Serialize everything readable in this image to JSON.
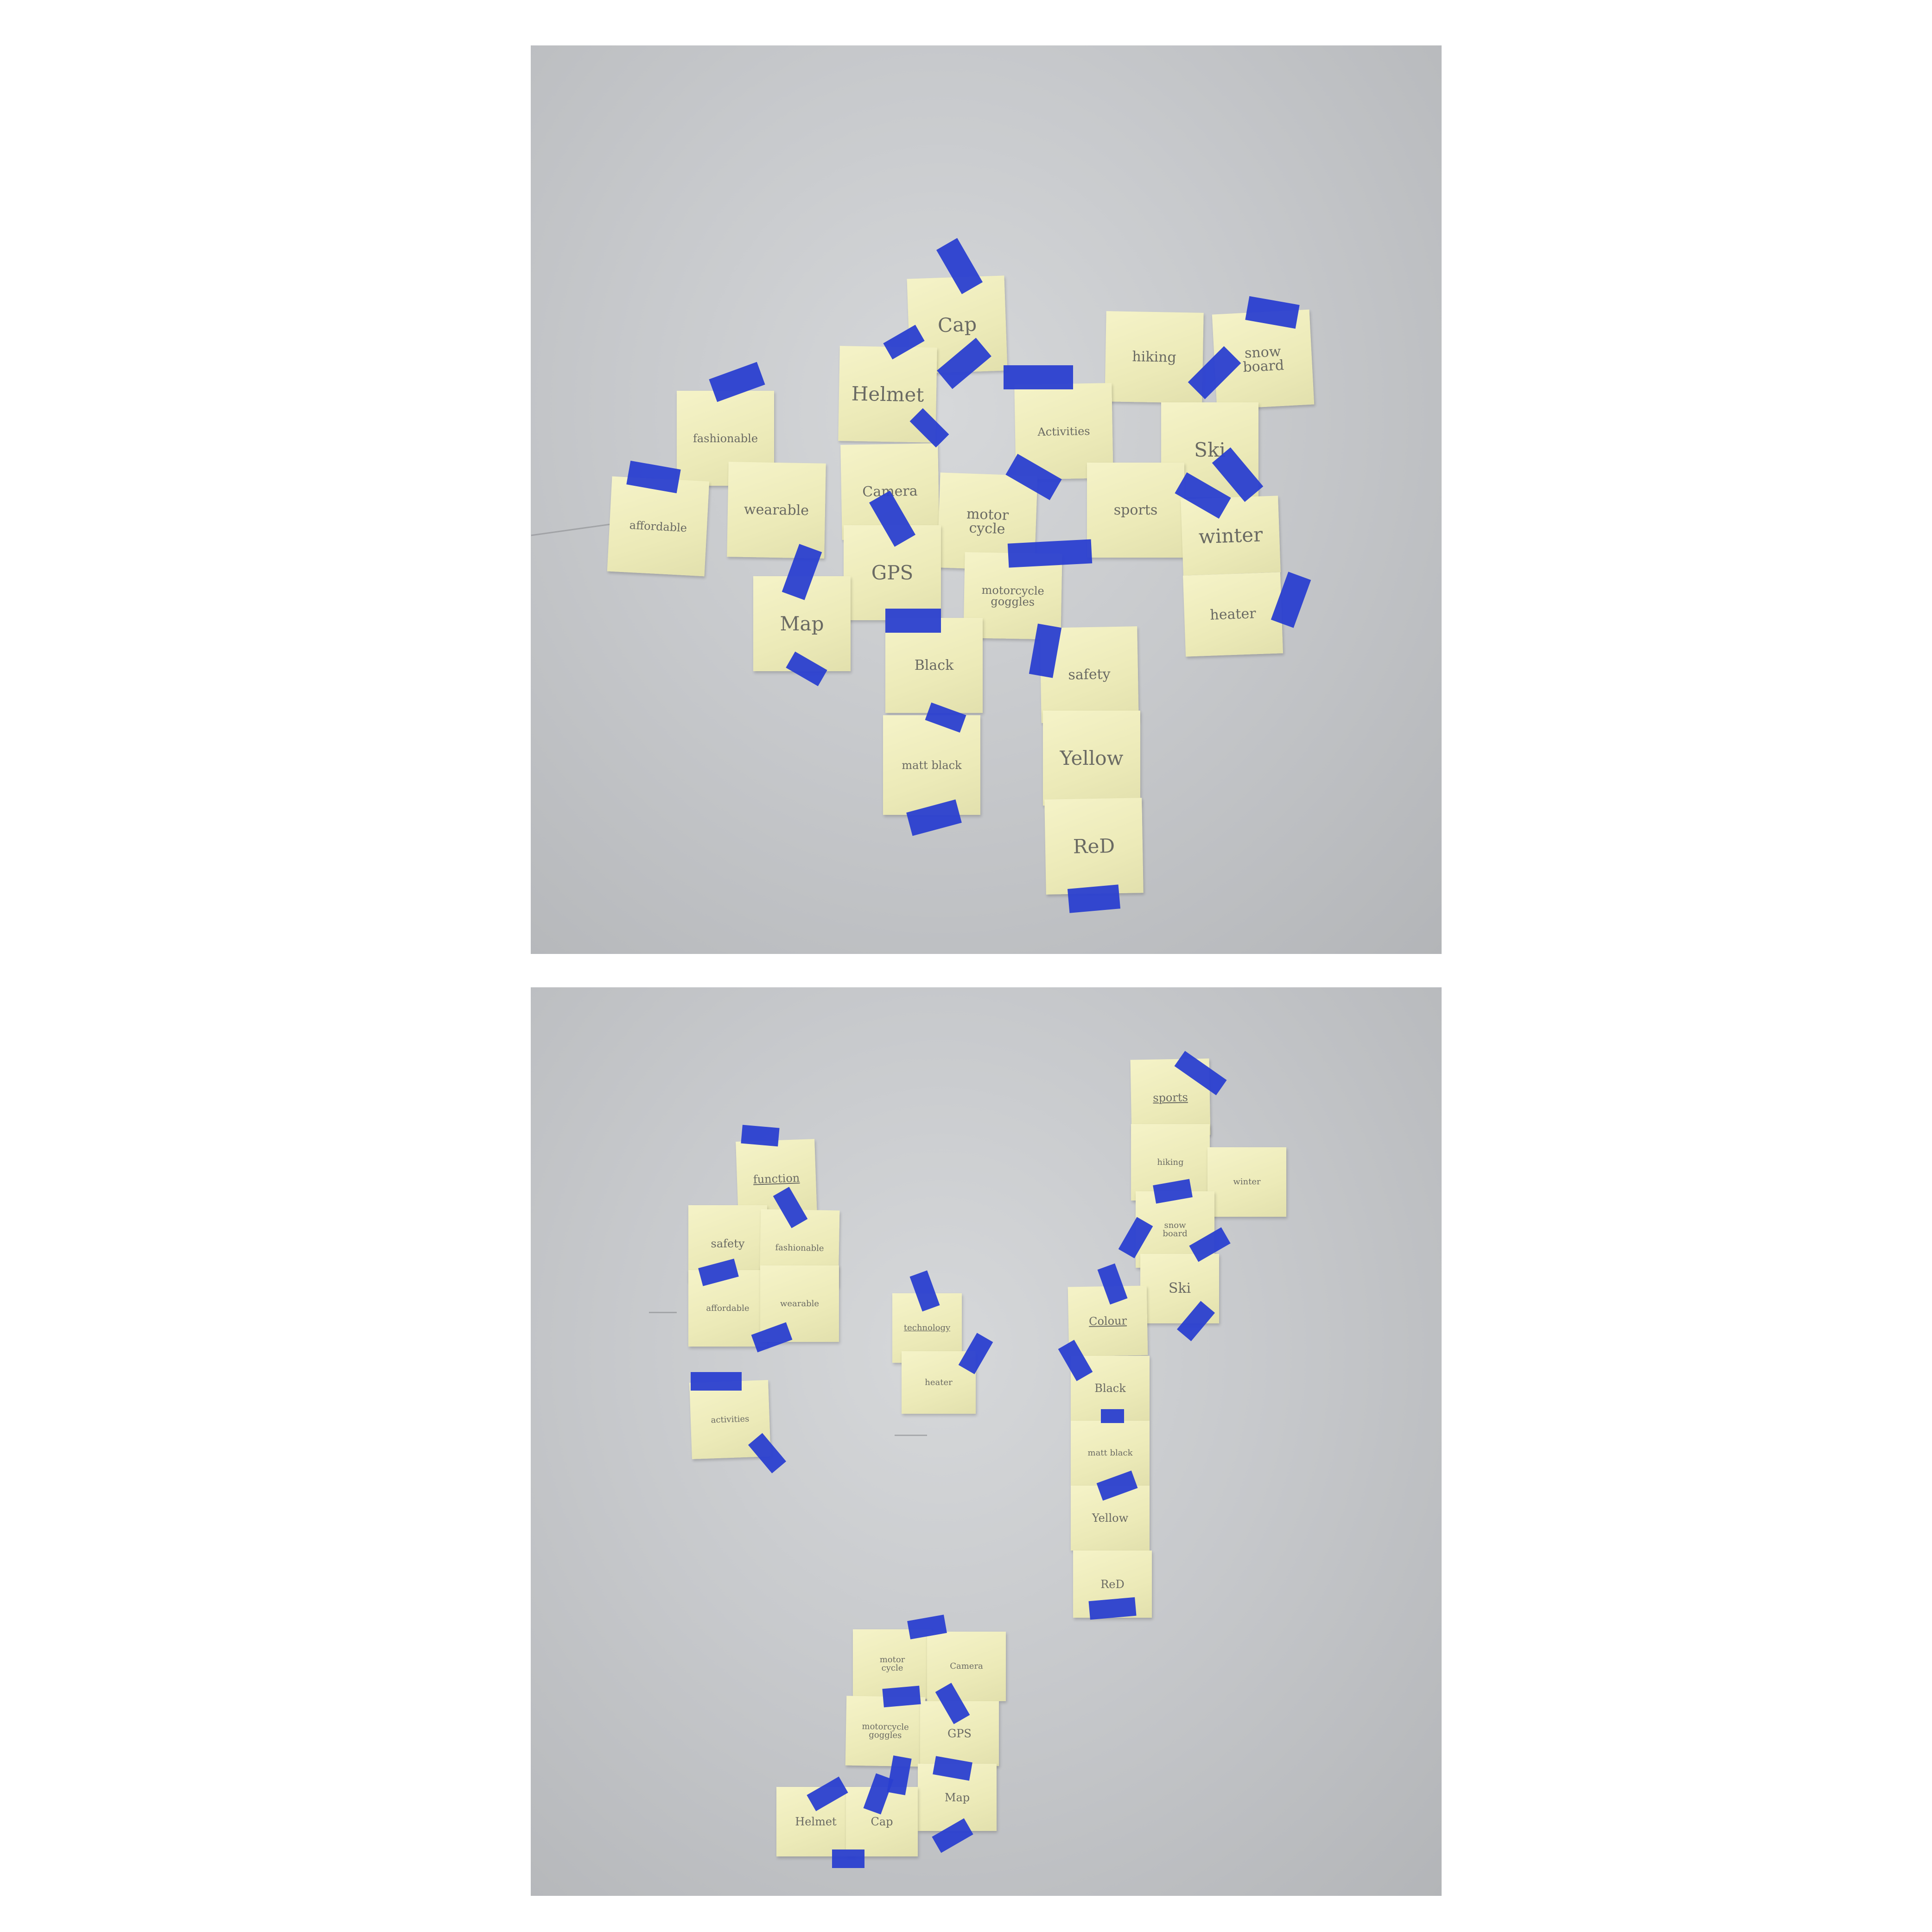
{
  "top_photo": {
    "notes": [
      {
        "id": "cap",
        "label": "Cap"
      },
      {
        "id": "helmet",
        "label": "Helmet"
      },
      {
        "id": "hiking",
        "label": "hiking"
      },
      {
        "id": "snowboard",
        "label": "snow\nboard"
      },
      {
        "id": "fashionable",
        "label": "fashionable"
      },
      {
        "id": "activities",
        "label": "Activities"
      },
      {
        "id": "ski",
        "label": "Ski"
      },
      {
        "id": "affordable",
        "label": "affordable"
      },
      {
        "id": "wearable",
        "label": "wearable"
      },
      {
        "id": "camera",
        "label": "Camera"
      },
      {
        "id": "motorcycle",
        "label": "motor\ncycle"
      },
      {
        "id": "sports",
        "label": "sports"
      },
      {
        "id": "winter",
        "label": "winter"
      },
      {
        "id": "gps",
        "label": "GPS"
      },
      {
        "id": "motorcycle-goggles",
        "label": "motorcycle\ngoggles"
      },
      {
        "id": "heater",
        "label": "heater"
      },
      {
        "id": "map",
        "label": "Map"
      },
      {
        "id": "black",
        "label": "Black"
      },
      {
        "id": "safety",
        "label": "safety"
      },
      {
        "id": "matt-black",
        "label": "matt black"
      },
      {
        "id": "yellow",
        "label": "Yellow"
      },
      {
        "id": "red",
        "label": "ReD"
      }
    ]
  },
  "bottom_photo": {
    "notes": [
      {
        "id": "function",
        "label": "function"
      },
      {
        "id": "safety",
        "label": "safety"
      },
      {
        "id": "fashionable",
        "label": "fashionable"
      },
      {
        "id": "affordable",
        "label": "affordable"
      },
      {
        "id": "wearable",
        "label": "wearable"
      },
      {
        "id": "activities",
        "label": "activities"
      },
      {
        "id": "technology",
        "label": "technology"
      },
      {
        "id": "heater",
        "label": "heater"
      },
      {
        "id": "sports",
        "label": "sports"
      },
      {
        "id": "hiking",
        "label": "hiking"
      },
      {
        "id": "winter",
        "label": "winter"
      },
      {
        "id": "snowboard",
        "label": "snow\nboard"
      },
      {
        "id": "ski",
        "label": "Ski"
      },
      {
        "id": "colour",
        "label": "Colour"
      },
      {
        "id": "black",
        "label": "Black"
      },
      {
        "id": "matt-black",
        "label": "matt black"
      },
      {
        "id": "yellow",
        "label": "Yellow"
      },
      {
        "id": "red",
        "label": "ReD"
      },
      {
        "id": "motorcycle",
        "label": "motor\ncycle"
      },
      {
        "id": "camera",
        "label": "Camera"
      },
      {
        "id": "motorcycle-goggles",
        "label": "motorcycle\ngoggles"
      },
      {
        "id": "gps",
        "label": "GPS"
      },
      {
        "id": "map",
        "label": "Map"
      },
      {
        "id": "helmet",
        "label": "Helmet"
      },
      {
        "id": "cap",
        "label": "Cap"
      }
    ]
  },
  "colors": {
    "wall": "#c7c9cc",
    "sticky_note": "#eceab8",
    "tape": "#2a3fd0",
    "handwriting": "#6a6a63"
  }
}
